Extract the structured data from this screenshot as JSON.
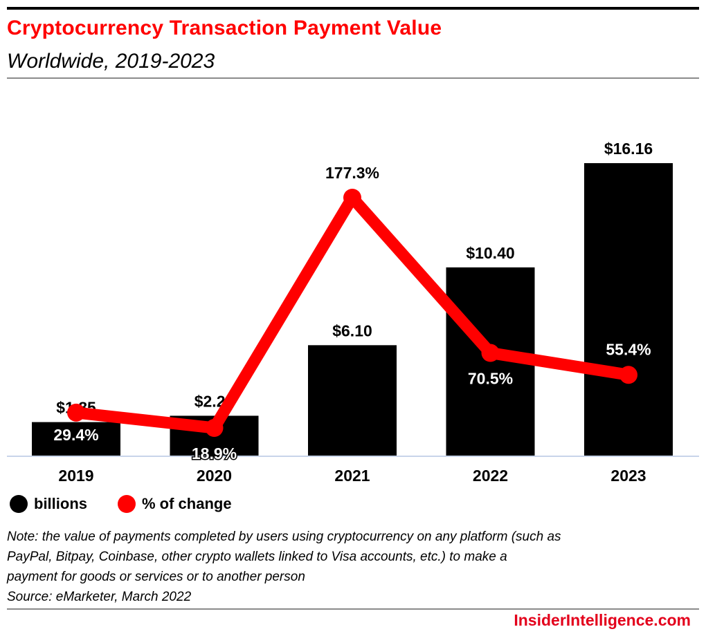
{
  "header": {
    "title": "Cryptocurrency Transaction Payment Value",
    "subtitle": "Worldwide, 2019-2023"
  },
  "legend": [
    {
      "label": "billions",
      "color": "#000000",
      "icon": "circle-black-icon"
    },
    {
      "label": "% of change",
      "color": "#ff0000",
      "icon": "circle-red-icon"
    }
  ],
  "note": {
    "lines": [
      "Note: the value of payments completed by users using cryptocurrency on any platform (such as",
      "PayPal, Bitpay, Coinbase, other crypto wallets linked to Visa accounts, etc.) to make a",
      "payment for goods or services or to another person",
      "Source: eMarketer, March 2022"
    ]
  },
  "footer": {
    "brand": "InsiderIntelligence.com"
  },
  "colors": {
    "title": "#ff0000",
    "bar": "#000000",
    "line": "#ff0000",
    "baseline": "#c8d4ea",
    "brand": "#e3001b"
  },
  "chart_data": {
    "type": "bar",
    "title": "Cryptocurrency Transaction Payment Value",
    "subtitle": "Worldwide, 2019-2023",
    "xlabel": "",
    "ylabel": "",
    "grid": false,
    "legend_position": "bottom-left",
    "categories": [
      "2019",
      "2020",
      "2021",
      "2022",
      "2023"
    ],
    "series": [
      {
        "name": "billions",
        "type": "bar",
        "values": [
          1.85,
          2.2,
          6.1,
          10.4,
          16.16
        ],
        "labels": [
          "$1.85",
          "$2.20",
          "$6.10",
          "$10.40",
          "$16.16"
        ],
        "ylim": [
          0,
          16.16
        ]
      },
      {
        "name": "% of change",
        "type": "line",
        "values": [
          29.4,
          18.9,
          177.3,
          70.5,
          55.4
        ],
        "labels": [
          "29.4%",
          "18.9%",
          "177.3%",
          "70.5%",
          "55.4%"
        ],
        "ylim": [
          0,
          200
        ]
      }
    ]
  }
}
